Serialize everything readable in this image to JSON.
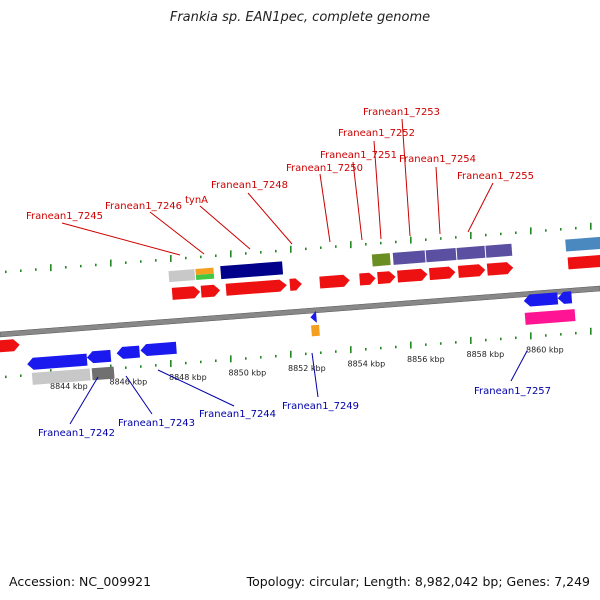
{
  "title": "Frankia sp. EAN1pec, complete genome",
  "footer": {
    "accession": "Accession: NC_009921",
    "topology": "Topology: circular; Length: 8,982,042 bp; Genes: 7,249"
  },
  "colors": {
    "forward_label": "#cc0000",
    "reverse_label": "#0000aa",
    "backbone": "#777777",
    "tick": "#228822"
  },
  "ticks": [
    "8844 kbp",
    "8846 kbp",
    "8848 kbp",
    "8850 kbp",
    "8852 kbp",
    "8854 kbp",
    "8856 kbp",
    "8858 kbp",
    "8860 kbp"
  ],
  "forward_genes": [
    "Franean1_7245",
    "Franean1_7246",
    "tynA",
    "Franean1_7248",
    "Franean1_7250",
    "Franean1_7251",
    "Franean1_7252",
    "Franean1_7253",
    "Franean1_7254",
    "Franean1_7255"
  ],
  "reverse_genes": [
    "Franean1_7242",
    "Franean1_7243",
    "Franean1_7244",
    "Franean1_7249",
    "Franean1_7257"
  ]
}
